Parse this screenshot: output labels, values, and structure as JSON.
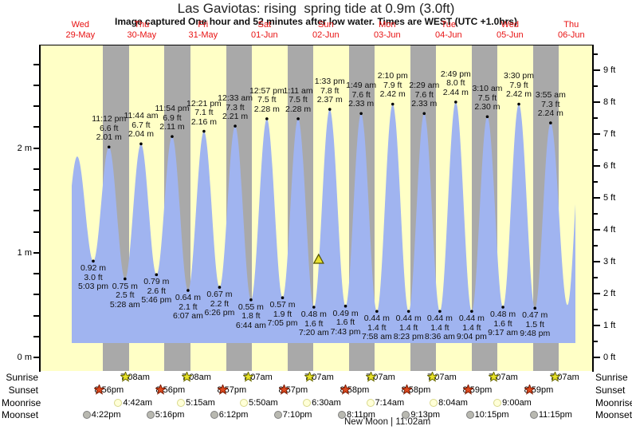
{
  "chart_data": {
    "type": "area",
    "title": "Las Gaviotas: rising  spring tide at 0.9m (3.0ft)",
    "subtitle": "Image captured One hour and 52 minutes after low water. Times are WEST (UTC +1.0hrs)",
    "days": [
      {
        "name": "Wed",
        "date": "29-May"
      },
      {
        "name": "Thu",
        "date": "30-May"
      },
      {
        "name": "Fri",
        "date": "31-May"
      },
      {
        "name": "Sat",
        "date": "01-Jun"
      },
      {
        "name": "Sun",
        "date": "02-Jun"
      },
      {
        "name": "Mon",
        "date": "03-Jun"
      },
      {
        "name": "Tue",
        "date": "04-Jun"
      },
      {
        "name": "Wed",
        "date": "05-Jun"
      },
      {
        "name": "Thu",
        "date": "06-Jun"
      }
    ],
    "y_axis_left": {
      "unit": "m",
      "tick_labels": [
        "0 m",
        "1 m",
        "2 m"
      ]
    },
    "y_axis_right": {
      "unit": "ft",
      "tick_labels": [
        "0 ft",
        "1 ft",
        "2 ft",
        "3 ft",
        "4 ft",
        "5 ft",
        "6 ft",
        "7 ft",
        "8 ft",
        "9 ft"
      ]
    },
    "tide_events": [
      {
        "t": 4.5,
        "h": 0.85,
        "type": "low",
        "show": false
      },
      {
        "t": 10.783,
        "h": 1.92,
        "type": "high",
        "show": false
      },
      {
        "t": 17.05,
        "h": 0.92,
        "type": "low",
        "show": true,
        "time": "5:03 pm",
        "ft": "3.0 ft",
        "m": "0.92 m"
      },
      {
        "t": 23.2,
        "h": 2.01,
        "type": "high",
        "show": true,
        "time": "11:12 pm",
        "ft": "6.6 ft",
        "m": "2.01 m"
      },
      {
        "t": 29.467,
        "h": 0.75,
        "type": "low",
        "show": true,
        "time": "5:28 am",
        "ft": "2.5 ft",
        "m": "0.75 m"
      },
      {
        "t": 35.733,
        "h": 2.04,
        "type": "high",
        "show": true,
        "time": "11:44 am",
        "ft": "6.7 ft",
        "m": "2.04 m"
      },
      {
        "t": 41.767,
        "h": 0.79,
        "type": "low",
        "show": true,
        "time": "5:46 pm",
        "ft": "2.6 ft",
        "m": "0.79 m"
      },
      {
        "t": 47.9,
        "h": 2.11,
        "type": "high",
        "show": true,
        "time": "11:54 pm",
        "ft": "6.9 ft",
        "m": "2.11 m"
      },
      {
        "t": 54.117,
        "h": 0.64,
        "type": "low",
        "show": true,
        "time": "6:07 am",
        "ft": "2.1 ft",
        "m": "0.64 m"
      },
      {
        "t": 60.35,
        "h": 2.16,
        "type": "high",
        "show": true,
        "time": "12:21 pm",
        "ft": "7.1 ft",
        "m": "2.16 m"
      },
      {
        "t": 66.433,
        "h": 0.67,
        "type": "low",
        "show": true,
        "time": "6:26 pm",
        "ft": "2.2 ft",
        "m": "0.67 m"
      },
      {
        "t": 72.55,
        "h": 2.21,
        "type": "high",
        "show": true,
        "time": "12:33 am",
        "ft": "7.3 ft",
        "m": "2.21 m"
      },
      {
        "t": 78.733,
        "h": 0.55,
        "type": "low",
        "show": true,
        "time": "6:44 am",
        "ft": "1.8 ft",
        "m": "0.55 m"
      },
      {
        "t": 84.95,
        "h": 2.28,
        "type": "high",
        "show": true,
        "time": "12:57 pm",
        "ft": "7.5 ft",
        "m": "2.28 m"
      },
      {
        "t": 91.083,
        "h": 0.57,
        "type": "low",
        "show": true,
        "time": "7:05 pm",
        "ft": "1.9 ft",
        "m": "0.57 m"
      },
      {
        "t": 97.183,
        "h": 2.28,
        "type": "high",
        "show": true,
        "time": "1:11 am",
        "ft": "7.5 ft",
        "m": "2.28 m"
      },
      {
        "t": 103.333,
        "h": 0.48,
        "type": "low",
        "show": true,
        "time": "7:20 am",
        "ft": "1.6 ft",
        "m": "0.48 m"
      },
      {
        "t": 109.55,
        "h": 2.37,
        "type": "high",
        "show": true,
        "time": "1:33 pm",
        "ft": "7.8 ft",
        "m": "2.37 m"
      },
      {
        "t": 115.717,
        "h": 0.49,
        "type": "low",
        "show": true,
        "time": "7:43 pm",
        "ft": "1.6 ft",
        "m": "0.49 m"
      },
      {
        "t": 121.817,
        "h": 2.33,
        "type": "high",
        "show": true,
        "time": "1:49 am",
        "ft": "7.6 ft",
        "m": "2.33 m"
      },
      {
        "t": 127.967,
        "h": 0.44,
        "type": "low",
        "show": true,
        "time": "7:58 am",
        "ft": "1.4 ft",
        "m": "0.44 m"
      },
      {
        "t": 134.167,
        "h": 2.42,
        "type": "high",
        "show": true,
        "time": "2:10 pm",
        "ft": "7.9 ft",
        "m": "2.42 m"
      },
      {
        "t": 140.383,
        "h": 0.44,
        "type": "low",
        "show": true,
        "time": "8:23 pm",
        "ft": "1.4 ft",
        "m": "0.44 m"
      },
      {
        "t": 146.483,
        "h": 2.33,
        "type": "high",
        "show": true,
        "time": "2:29 am",
        "ft": "7.6 ft",
        "m": "2.33 m"
      },
      {
        "t": 152.6,
        "h": 0.44,
        "type": "low",
        "show": true,
        "time": "8:36 am",
        "ft": "1.4 ft",
        "m": "0.44 m"
      },
      {
        "t": 158.817,
        "h": 2.44,
        "type": "high",
        "show": true,
        "time": "2:49 pm",
        "ft": "8.0 ft",
        "m": "2.44 m"
      },
      {
        "t": 165.067,
        "h": 0.44,
        "type": "low",
        "show": true,
        "time": "9:04 pm",
        "ft": "1.4 ft",
        "m": "0.44 m"
      },
      {
        "t": 171.167,
        "h": 2.3,
        "type": "high",
        "show": true,
        "time": "3:10 am",
        "ft": "7.5 ft",
        "m": "2.30 m"
      },
      {
        "t": 177.283,
        "h": 0.48,
        "type": "low",
        "show": true,
        "time": "9:17 am",
        "ft": "1.6 ft",
        "m": "0.48 m"
      },
      {
        "t": 183.5,
        "h": 2.42,
        "type": "high",
        "show": true,
        "time": "3:30 pm",
        "ft": "7.9 ft",
        "m": "2.42 m"
      },
      {
        "t": 189.8,
        "h": 0.47,
        "type": "low",
        "show": true,
        "time": "9:48 pm",
        "ft": "1.5 ft",
        "m": "0.47 m"
      },
      {
        "t": 195.917,
        "h": 2.24,
        "type": "high",
        "show": true,
        "time": "3:55 am",
        "ft": "7.3 ft",
        "m": "2.24 m"
      },
      {
        "t": 202.5,
        "h": 0.5,
        "type": "low",
        "show": false
      },
      {
        "t": 208.25,
        "h": 2.2,
        "type": "high",
        "show": false
      }
    ],
    "capture_marker": {
      "t": 105.2,
      "h": 0.93
    },
    "colors": {
      "day_bg": "#ffffc6",
      "night_bg": "#a9a9a9",
      "tide_fill": "#a0b4f0",
      "date_red": "#e81212",
      "sunrise_star": "#e8e229",
      "sunset_star": "#dd4a1f",
      "moonrise_circle": "#ffffd8",
      "moonset_circle": "#b9b9b1"
    }
  },
  "astro": {
    "row_labels": [
      "Sunrise",
      "Sunset",
      "Moonrise",
      "Moonset"
    ],
    "sunrise": [
      {
        "t": 31.133,
        "time": "7:08am"
      },
      {
        "t": 55.133,
        "time": "7:08am"
      },
      {
        "t": 79.117,
        "time": "7:07am"
      },
      {
        "t": 103.117,
        "time": "7:07am"
      },
      {
        "t": 127.117,
        "time": "7:07am"
      },
      {
        "t": 151.117,
        "time": "7:07am"
      },
      {
        "t": 175.117,
        "time": "7:07am"
      },
      {
        "t": 199.117,
        "time": "7:07am"
      }
    ],
    "sunset": [
      {
        "t": 20.933,
        "time": "8:56pm"
      },
      {
        "t": 44.933,
        "time": "8:56pm"
      },
      {
        "t": 68.95,
        "time": "8:57pm"
      },
      {
        "t": 92.95,
        "time": "8:57pm"
      },
      {
        "t": 116.967,
        "time": "8:58pm"
      },
      {
        "t": 140.967,
        "time": "8:58pm"
      },
      {
        "t": 164.983,
        "time": "8:59pm"
      },
      {
        "t": 188.983,
        "time": "8:59pm"
      }
    ],
    "moonrise": [
      {
        "t": 28.7,
        "time": "4:42am"
      },
      {
        "t": 53.25,
        "time": "5:15am"
      },
      {
        "t": 77.833,
        "time": "5:50am"
      },
      {
        "t": 102.5,
        "time": "6:30am"
      },
      {
        "t": 127.233,
        "time": "7:14am"
      },
      {
        "t": 152.067,
        "time": "8:04am"
      },
      {
        "t": 177.0,
        "time": "9:00am"
      }
    ],
    "moonset": [
      {
        "t": 16.367,
        "time": "4:22pm"
      },
      {
        "t": 41.267,
        "time": "5:16pm"
      },
      {
        "t": 66.2,
        "time": "6:12pm"
      },
      {
        "t": 91.167,
        "time": "7:10pm"
      },
      {
        "t": 116.183,
        "time": "8:11pm"
      },
      {
        "t": 141.217,
        "time": "9:13pm"
      },
      {
        "t": 166.25,
        "time": "10:15pm"
      },
      {
        "t": 191.25,
        "time": "11:15pm"
      }
    ],
    "footnote": "New Moon | 11:02am"
  }
}
